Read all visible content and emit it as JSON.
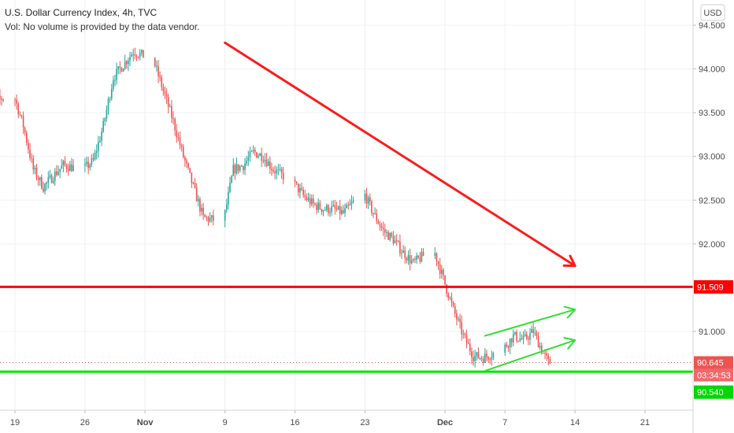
{
  "header": {
    "title": "U.S. Dollar Currency Index, 4h, TVC",
    "subtitle": "Vol: No volume is provided by the data vendor."
  },
  "currency_button": {
    "label": "USD"
  },
  "colors": {
    "up": "#26a69a",
    "down": "#ef5350",
    "resistance": "#ff0000",
    "support": "#00e600",
    "channel": "#33dd33",
    "trend_arrow": "#ff1a1a",
    "countdown_bg": "#f0686a",
    "last_bg": "#ef5350",
    "support_bg": "#00d800"
  },
  "chart_data": {
    "type": "candlestick",
    "title": "U.S. Dollar Currency Index, 4h, TVC",
    "ylim": [
      90.25,
      94.8
    ],
    "y_ticks": [
      "94.500",
      "94.000",
      "93.500",
      "93.000",
      "92.500",
      "92.000",
      "91.000"
    ],
    "y_tick_values": [
      94.5,
      94.0,
      93.5,
      93.0,
      92.5,
      92.0,
      91.0
    ],
    "x_ticks": [
      "19",
      "26",
      "Nov",
      "9",
      "16",
      "23",
      "Dec",
      "7",
      "14",
      "21"
    ],
    "x_tick_values": [
      "2020-10-19",
      "2020-10-26",
      "2020-11-01",
      "2020-11-09",
      "2020-11-16",
      "2020-11-23",
      "2020-12-01",
      "2020-12-07",
      "2020-12-14",
      "2020-12-21"
    ],
    "bold_x_ticks": [
      "Nov",
      "Dec"
    ],
    "series_path": [
      [
        "2020-10-16",
        93.85
      ],
      [
        "2020-10-17",
        93.62
      ],
      [
        "2020-10-19",
        93.72
      ],
      [
        "2020-10-20",
        93.35
      ],
      [
        "2020-10-21",
        92.85
      ],
      [
        "2020-10-22",
        92.65
      ],
      [
        "2020-10-23",
        92.78
      ],
      [
        "2020-10-24",
        92.9
      ],
      [
        "2020-10-26",
        92.85
      ],
      [
        "2020-10-27",
        92.95
      ],
      [
        "2020-10-28",
        93.35
      ],
      [
        "2020-10-29",
        93.9
      ],
      [
        "2020-10-30",
        94.05
      ],
      [
        "2020-10-31",
        94.2
      ],
      [
        "2020-11-02",
        94.1
      ],
      [
        "2020-11-03",
        93.75
      ],
      [
        "2020-11-04",
        93.4
      ],
      [
        "2020-11-05",
        93.0
      ],
      [
        "2020-11-06",
        92.65
      ],
      [
        "2020-11-07",
        92.3
      ],
      [
        "2020-11-09",
        92.25
      ],
      [
        "2020-11-10",
        92.85
      ],
      [
        "2020-11-11",
        92.9
      ],
      [
        "2020-11-12",
        93.05
      ],
      [
        "2020-11-13",
        93.0
      ],
      [
        "2020-11-14",
        92.85
      ],
      [
        "2020-11-16",
        92.7
      ],
      [
        "2020-11-17",
        92.55
      ],
      [
        "2020-11-18",
        92.45
      ],
      [
        "2020-11-19",
        92.4
      ],
      [
        "2020-11-20",
        92.4
      ],
      [
        "2020-11-21",
        92.35
      ],
      [
        "2020-11-23",
        92.6
      ],
      [
        "2020-11-24",
        92.35
      ],
      [
        "2020-11-25",
        92.15
      ],
      [
        "2020-11-26",
        92.05
      ],
      [
        "2020-11-27",
        91.9
      ],
      [
        "2020-11-28",
        91.78
      ],
      [
        "2020-11-30",
        91.95
      ],
      [
        "2020-12-01",
        91.6
      ],
      [
        "2020-12-02",
        91.25
      ],
      [
        "2020-12-03",
        90.95
      ],
      [
        "2020-12-04",
        90.72
      ],
      [
        "2020-12-05",
        90.7
      ],
      [
        "2020-12-07",
        90.8
      ],
      [
        "2020-12-08",
        90.95
      ],
      [
        "2020-12-09",
        90.9
      ],
      [
        "2020-12-10",
        91.0
      ],
      [
        "2020-12-11",
        90.75
      ],
      [
        "2020-12-11T12:00",
        90.645
      ]
    ],
    "levels": {
      "resistance": {
        "value": 91.509,
        "label": "91.509"
      },
      "support": {
        "value": 90.54,
        "label": "90.540"
      },
      "last_price": {
        "value": 90.645,
        "label": "90.645"
      }
    },
    "countdown": "03:34:53",
    "trend_arrow": {
      "from": [
        "2020-11-09",
        94.3
      ],
      "to": [
        "2020-12-14",
        91.75
      ]
    },
    "channel": {
      "upper": [
        [
          "2020-12-05",
          90.95
        ],
        [
          "2020-12-14",
          91.25
        ]
      ],
      "lower": [
        [
          "2020-12-05",
          90.55
        ],
        [
          "2020-12-14",
          90.9
        ]
      ]
    }
  }
}
